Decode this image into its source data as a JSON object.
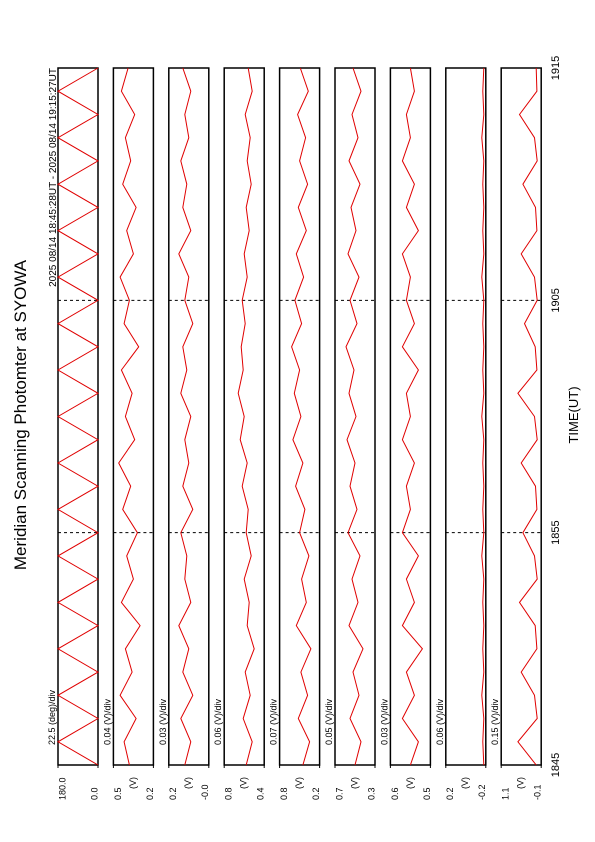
{
  "chart_data": {
    "type": "line",
    "title": "Meridian Scanning Photomter at SYOWA",
    "subtitle": "2025 08/14 18:45:28UT - 2025 08/14 19:15:27UT",
    "xlabel": "TIME(UT)",
    "xlim": [
      0,
      30
    ],
    "xticks": [
      {
        "value": 0,
        "label": "1845"
      },
      {
        "value": 10,
        "label": "1855"
      },
      {
        "value": 20,
        "label": "1905"
      },
      {
        "value": 30,
        "label": "1915"
      }
    ],
    "grid": true,
    "x": [
      0,
      1,
      2,
      3,
      4,
      5,
      6,
      7,
      8,
      9,
      10,
      11,
      12,
      13,
      14,
      15,
      16,
      17,
      18,
      19,
      20,
      21,
      22,
      23,
      24,
      25,
      26,
      27,
      28,
      29,
      30
    ],
    "panels": [
      {
        "scale_label": "22.5 (deg)/div",
        "color": "#e00000",
        "ylim": [
          0,
          180
        ],
        "yticks": [
          {
            "value": 180,
            "label": "180.0"
          },
          {
            "value": 0,
            "label": "0.0"
          }
        ],
        "values": [
          0,
          180,
          0,
          180,
          0,
          180,
          0,
          180,
          0,
          180,
          0,
          180,
          0,
          180,
          0,
          180,
          0,
          180,
          0,
          180,
          0,
          180,
          0,
          180,
          0,
          180,
          0,
          180,
          0,
          180,
          0
        ]
      },
      {
        "scale_label": "0.04 (V)/div",
        "ylabel": "(V)",
        "color": "#e00000",
        "ylim": [
          0.2,
          0.5
        ],
        "yticks": [
          0.5,
          0.2
        ],
        "values": [
          0.38,
          0.42,
          0.33,
          0.45,
          0.36,
          0.41,
          0.3,
          0.44,
          0.35,
          0.4,
          0.32,
          0.43,
          0.37,
          0.46,
          0.34,
          0.41,
          0.36,
          0.44,
          0.31,
          0.42,
          0.38,
          0.45,
          0.35,
          0.4,
          0.33,
          0.43,
          0.37,
          0.41,
          0.34,
          0.44,
          0.39
        ]
      },
      {
        "scale_label": "0.03 (V)/div",
        "ylabel": "(V)",
        "color": "#e00000",
        "ylim": [
          0,
          0.2
        ],
        "yticks": [
          0.2,
          {
            "value": 0,
            "label": "-0.0"
          }
        ],
        "values": [
          0.12,
          0.09,
          0.14,
          0.08,
          0.13,
          0.1,
          0.15,
          0.09,
          0.12,
          0.11,
          0.14,
          0.08,
          0.13,
          0.1,
          0.12,
          0.09,
          0.14,
          0.11,
          0.13,
          0.08,
          0.12,
          0.1,
          0.15,
          0.09,
          0.13,
          0.11,
          0.14,
          0.1,
          0.12,
          0.09,
          0.13
        ]
      },
      {
        "scale_label": "0.06 (V)/div",
        "ylabel": "(V)",
        "color": "#e00000",
        "ylim": [
          0.4,
          0.8
        ],
        "yticks": [
          0.8,
          0.4
        ],
        "values": [
          0.58,
          0.52,
          0.61,
          0.54,
          0.59,
          0.5,
          0.57,
          0.55,
          0.6,
          0.53,
          0.58,
          0.56,
          0.62,
          0.57,
          0.64,
          0.6,
          0.66,
          0.61,
          0.63,
          0.59,
          0.62,
          0.57,
          0.6,
          0.55,
          0.58,
          0.53,
          0.57,
          0.54,
          0.59,
          0.52,
          0.56
        ]
      },
      {
        "scale_label": "0.07 (V)/div",
        "ylabel": "(V)",
        "color": "#e00000",
        "ylim": [
          0.2,
          0.8
        ],
        "yticks": [
          0.8,
          0.2
        ],
        "values": [
          0.45,
          0.35,
          0.52,
          0.38,
          0.48,
          0.33,
          0.55,
          0.4,
          0.47,
          0.36,
          0.5,
          0.42,
          0.56,
          0.45,
          0.6,
          0.48,
          0.58,
          0.5,
          0.62,
          0.47,
          0.57,
          0.44,
          0.55,
          0.4,
          0.52,
          0.38,
          0.5,
          0.41,
          0.53,
          0.37,
          0.49
        ]
      },
      {
        "scale_label": "0.05 (V)/div",
        "ylabel": "(V)",
        "color": "#e00000",
        "ylim": [
          0.3,
          0.7
        ],
        "yticks": [
          0.7,
          0.3
        ],
        "values": [
          0.5,
          0.44,
          0.55,
          0.46,
          0.52,
          0.42,
          0.56,
          0.47,
          0.53,
          0.45,
          0.57,
          0.48,
          0.55,
          0.5,
          0.58,
          0.49,
          0.56,
          0.51,
          0.59,
          0.48,
          0.55,
          0.46,
          0.57,
          0.49,
          0.54,
          0.45,
          0.56,
          0.47,
          0.53,
          0.44,
          0.52
        ]
      },
      {
        "scale_label": "0.03 (V)/div",
        "ylabel": "(V)",
        "color": "#e00000",
        "ylim": [
          0.5,
          0.6
        ],
        "yticks": [
          0.6,
          0.5
        ],
        "values": [
          0.55,
          0.53,
          0.57,
          0.54,
          0.56,
          0.52,
          0.57,
          0.54,
          0.56,
          0.53,
          0.57,
          0.55,
          0.56,
          0.54,
          0.57,
          0.55,
          0.56,
          0.53,
          0.57,
          0.54,
          0.56,
          0.55,
          0.57,
          0.53,
          0.56,
          0.54,
          0.57,
          0.55,
          0.56,
          0.54,
          0.55
        ]
      },
      {
        "scale_label": "0.06 (V)/div",
        "ylabel": "(V)",
        "color": "#e00000",
        "ylim": [
          -0.2,
          0.2
        ],
        "yticks": [
          0.2,
          -0.2
        ],
        "values": [
          -0.18,
          -0.17,
          -0.18,
          -0.16,
          -0.18,
          -0.17,
          -0.18,
          -0.17,
          -0.18,
          -0.16,
          -0.18,
          -0.17,
          -0.18,
          -0.17,
          -0.18,
          -0.16,
          -0.18,
          -0.17,
          -0.18,
          -0.17,
          -0.18,
          -0.16,
          -0.18,
          -0.17,
          -0.18,
          -0.17,
          -0.18,
          -0.16,
          -0.18,
          -0.17,
          -0.18
        ]
      },
      {
        "scale_label": "0.15 (V)/div",
        "ylabel": "(V)",
        "color": "#e00000",
        "ylim": [
          -0.1,
          1.1
        ],
        "yticks": [
          1.1,
          -0.1
        ],
        "values": [
          0.05,
          0.6,
          0.02,
          0.1,
          0.5,
          0.03,
          0.08,
          0.55,
          0.02,
          0.1,
          0.45,
          0.03,
          0.07,
          0.5,
          0.02,
          0.1,
          0.6,
          0.03,
          0.08,
          0.4,
          0.02,
          0.1,
          0.5,
          0.03,
          0.07,
          0.45,
          0.02,
          0.1,
          0.55,
          0.03,
          0.05
        ]
      }
    ]
  }
}
